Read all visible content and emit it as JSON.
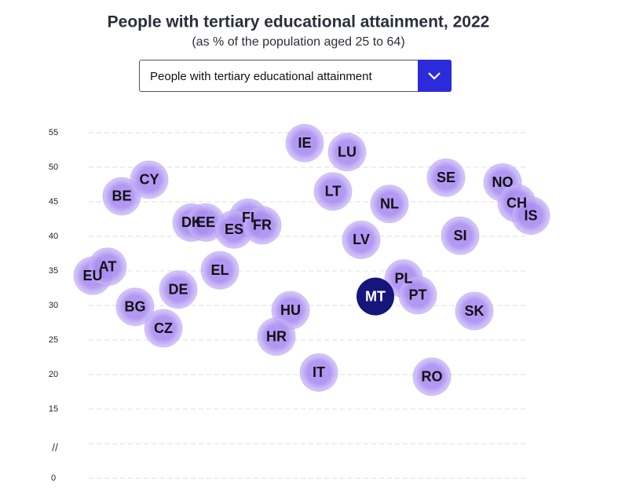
{
  "chart_data": {
    "type": "dot",
    "title": "People with tertiary educational attainment, 2022",
    "subtitle": "(as % of the population aged 25 to 64)",
    "categories": [
      "EU",
      "AT",
      "BE",
      "CY",
      "DK",
      "EE",
      "FI",
      "ES",
      "FR",
      "DE",
      "BG",
      "CZ",
      "EL",
      "IE",
      "LU",
      "LT",
      "LV",
      "HU",
      "HR",
      "IT",
      "NL",
      "SE",
      "NO",
      "CH",
      "IS",
      "SI",
      "PL",
      "MT",
      "PT",
      "SK",
      "RO"
    ],
    "values": [
      34.3,
      35.6,
      45.8,
      48.2,
      42.0,
      42.0,
      42.7,
      41.0,
      41.6,
      32.3,
      29.8,
      26.7,
      35.1,
      53.5,
      52.2,
      46.5,
      39.5,
      29.3,
      25.5,
      20.3,
      44.7,
      48.5,
      47.8,
      44.8,
      43.0,
      40.1,
      33.9,
      31.3,
      31.5,
      29.2,
      19.7
    ],
    "color": "#a98cf0",
    "highlight_color": "#15157a",
    "highlighted": 27,
    "ylim": [
      0,
      55
    ],
    "y_break": [
      0,
      15
    ],
    "yticks": [
      0,
      15,
      20,
      25,
      30,
      35,
      40,
      45,
      50,
      55
    ],
    "grid": true
  },
  "controls": {
    "dropdown": "People with tertiary educational attainment"
  }
}
